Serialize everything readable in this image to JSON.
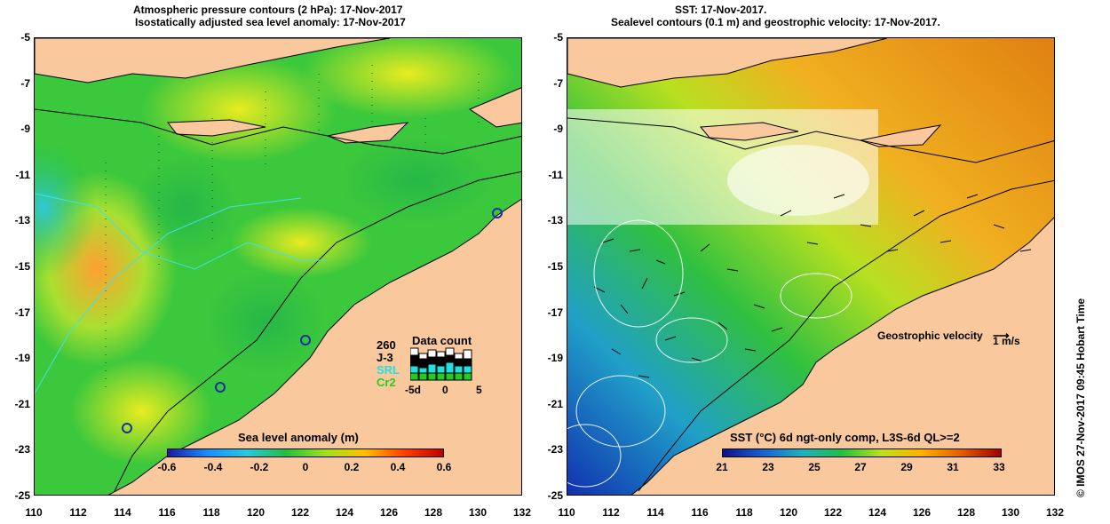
{
  "left": {
    "title_line1": "Atmospheric pressure contours (2 hPa): 17-Nov-2017",
    "title_line2": "Isostatically adjusted sea level anomaly: 17-Nov-2017",
    "colorbar_title": "Sea level anomaly (m)",
    "colorbar_ticks": [
      "-0.6",
      "-0.4",
      "-0.2",
      "0",
      "0.2",
      "0.4",
      "0.6"
    ],
    "colors": [
      "#1a1aa0",
      "#1a8cff",
      "#28c8e0",
      "#22c040",
      "#a0e020",
      "#ffc000",
      "#ff4000"
    ],
    "data_count": {
      "total": "260",
      "title": "Data count",
      "missions": [
        {
          "name": "J-3",
          "color": "#000000"
        },
        {
          "name": "SRL",
          "color": "#22e0e0"
        },
        {
          "name": "Cr2",
          "color": "#22cc22"
        }
      ],
      "axis_labels": [
        "-5d",
        "0",
        "5"
      ]
    }
  },
  "right": {
    "title_line1": "SST: 17-Nov-2017.",
    "title_line2": "Sealevel contours (0.1 m) and geostrophic velocity: 17-Nov-2017.",
    "colorbar_title": "SST (°C) 6d ngt-only comp, L3S-6d QL>=2",
    "colorbar_ticks": [
      "21",
      "23",
      "25",
      "27",
      "29",
      "31",
      "33"
    ],
    "colors": [
      "#10108a",
      "#1a60d0",
      "#20b0c0",
      "#20c040",
      "#c0e020",
      "#ffb000",
      "#e06000",
      "#a00000"
    ],
    "velocity_label": "Geostrophic velocity",
    "velocity_unit": "1 m/s"
  },
  "axes": {
    "y_ticks": [
      "-5",
      "-7",
      "-9",
      "-11",
      "-13",
      "-15",
      "-17",
      "-19",
      "-21",
      "-23",
      "-25"
    ],
    "x_ticks": [
      "110",
      "112",
      "114",
      "116",
      "118",
      "120",
      "122",
      "124",
      "126",
      "128",
      "130",
      "132"
    ]
  },
  "credit": "© IMOS 27-Nov-2017 09:45 Hobart Time"
}
